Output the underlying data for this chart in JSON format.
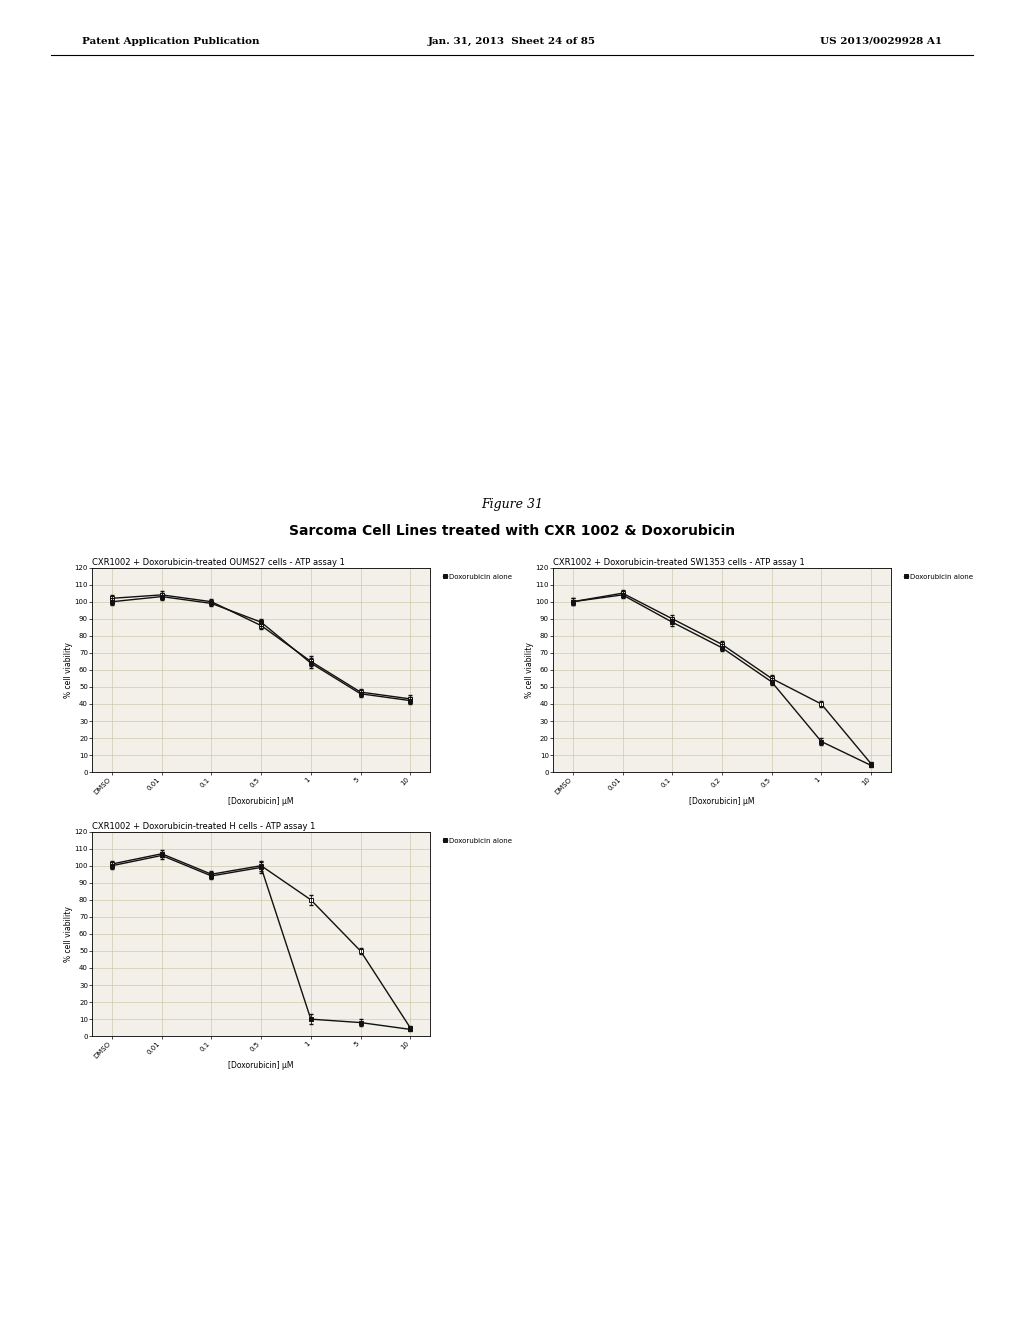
{
  "figure_title": "Figure 31",
  "figure_subtitle": "Sarcoma Cell Lines treated with CXR 1002 & Doxorubicin",
  "page_header_left": "Patent Application Publication",
  "page_header_mid": "Jan. 31, 2013  Sheet 24 of 85",
  "page_header_right": "US 2013/0029928 A1",
  "charts": [
    {
      "title": "CXR1002 + Doxorubicin-treated OUMS27 cells - ATP assay 1",
      "xlabel": "[Doxorubicin] µM",
      "ylabel": "% cell viability",
      "ylim": [
        0,
        120
      ],
      "yticks": [
        0,
        10,
        20,
        30,
        40,
        50,
        60,
        70,
        80,
        90,
        100,
        110,
        120
      ],
      "xtick_labels": [
        "DMSO",
        "0.01",
        "0.1",
        "0.5",
        "1",
        "5",
        "10"
      ],
      "legend_label": "Doxorubicin alone",
      "line1_y": [
        102,
        104,
        100,
        86,
        65,
        47,
        43
      ],
      "line2_y": [
        100,
        103,
        99,
        88,
        64,
        46,
        42
      ],
      "line1_yerr": [
        2.0,
        2.0,
        1.5,
        2.0,
        3.0,
        2.0,
        2.0
      ],
      "line2_yerr": [
        2.0,
        2.0,
        1.5,
        2.0,
        3.0,
        2.0,
        2.0
      ]
    },
    {
      "title": "CXR1002 + Doxorubicin-treated SW1353 cells - ATP assay 1",
      "xlabel": "[Doxorubicin] µM",
      "ylabel": "% cell viability",
      "ylim": [
        0,
        120
      ],
      "yticks": [
        0,
        10,
        20,
        30,
        40,
        50,
        60,
        70,
        80,
        90,
        100,
        110,
        120
      ],
      "xtick_labels": [
        "DMSO",
        "0.01",
        "0.1",
        "0.2",
        "0.5",
        "1",
        "10"
      ],
      "legend_label": "Doxorubicin alone",
      "line1_y": [
        100,
        105,
        90,
        75,
        55,
        40,
        5
      ],
      "line2_y": [
        100,
        104,
        88,
        73,
        53,
        18,
        4
      ],
      "line1_yerr": [
        2.0,
        2.0,
        2.0,
        2.0,
        2.0,
        2.0,
        1.0
      ],
      "line2_yerr": [
        2.0,
        2.0,
        2.0,
        2.0,
        2.0,
        2.0,
        1.0
      ]
    },
    {
      "title": "CXR1002 + Doxorubicin-treated H cells - ATP assay 1",
      "xlabel": "[Doxorubicin] µM",
      "ylabel": "% cell viability",
      "ylim": [
        0,
        120
      ],
      "yticks": [
        0,
        10,
        20,
        30,
        40,
        50,
        60,
        70,
        80,
        90,
        100,
        110,
        120
      ],
      "xtick_labels": [
        "DMSO",
        "0.01",
        "0.1",
        "0.5",
        "1",
        "5",
        "10"
      ],
      "legend_label": "Doxorubicin alone",
      "line1_y": [
        101,
        107,
        95,
        100,
        80,
        50,
        5
      ],
      "line2_y": [
        100,
        106,
        94,
        99,
        10,
        8,
        4
      ],
      "line1_yerr": [
        2.0,
        2.0,
        2.0,
        3.0,
        3.0,
        2.0,
        1.0
      ],
      "line2_yerr": [
        2.0,
        2.0,
        2.0,
        3.0,
        3.0,
        2.0,
        1.0
      ]
    }
  ],
  "bg_color": "#f2f0e8",
  "line_color": "#111111",
  "grid_color": "#c8c0a0",
  "marker": "s",
  "markersize": 3.5,
  "linewidth": 1.0,
  "chart_title_fontsize": 6.0,
  "axis_label_fontsize": 5.5,
  "tick_fontsize": 5.0,
  "legend_fontsize": 5.0
}
